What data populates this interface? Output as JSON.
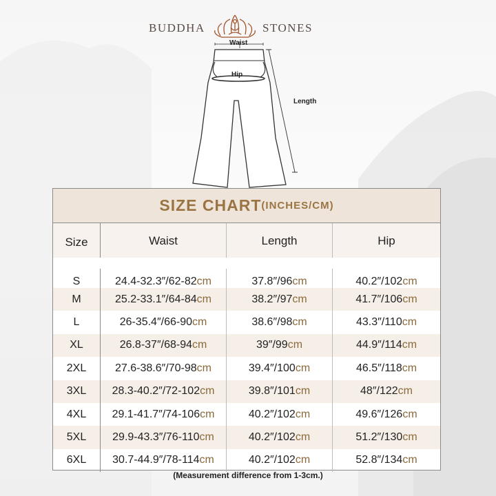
{
  "brand": {
    "left": "BUDDHA",
    "right": "STONES",
    "color": "#a0522d"
  },
  "diagram": {
    "waist": "Waist",
    "hip": "Hip",
    "length": "Length"
  },
  "chart": {
    "title": "SIZE CHART",
    "units": "(INCHES/CM)",
    "headers": [
      "Size",
      "Waist",
      "Length",
      "Hip"
    ],
    "unit_suffix": "cm",
    "rows": [
      {
        "size": "S",
        "waist": "24.4-32.3″/62-82",
        "length": "37.8″/96",
        "hip": "40.2″/102"
      },
      {
        "size": "M",
        "waist": "25.2-33.1″/64-84",
        "length": "38.2″/97",
        "hip": "41.7″/106"
      },
      {
        "size": "L",
        "waist": "26-35.4″/66-90",
        "length": "38.6″/98",
        "hip": "43.3″/110"
      },
      {
        "size": "XL",
        "waist": "26.8-37″/68-94",
        "length": "39″/99",
        "hip": "44.9″/114"
      },
      {
        "size": "2XL",
        "waist": "27.6-38.6″/70-98",
        "length": "39.4″/100",
        "hip": "46.5″/118"
      },
      {
        "size": "3XL",
        "waist": "28.3-40.2″/72-102",
        "length": "39.8″/101",
        "hip": "48″/122"
      },
      {
        "size": "4XL",
        "waist": "29.1-41.7″/74-106",
        "length": "40.2″/102",
        "hip": "49.6″/126"
      },
      {
        "size": "5XL",
        "waist": "29.9-43.3″/76-110",
        "length": "40.2″/102",
        "hip": "51.2″/130"
      },
      {
        "size": "6XL",
        "waist": "30.7-44.9″/78-114",
        "length": "40.2″/102",
        "hip": "52.8″/134"
      }
    ],
    "title_color": "#9a7543",
    "cm_color": "#8a6a3a"
  },
  "note": "(Measurement difference from 1-3cm.)"
}
